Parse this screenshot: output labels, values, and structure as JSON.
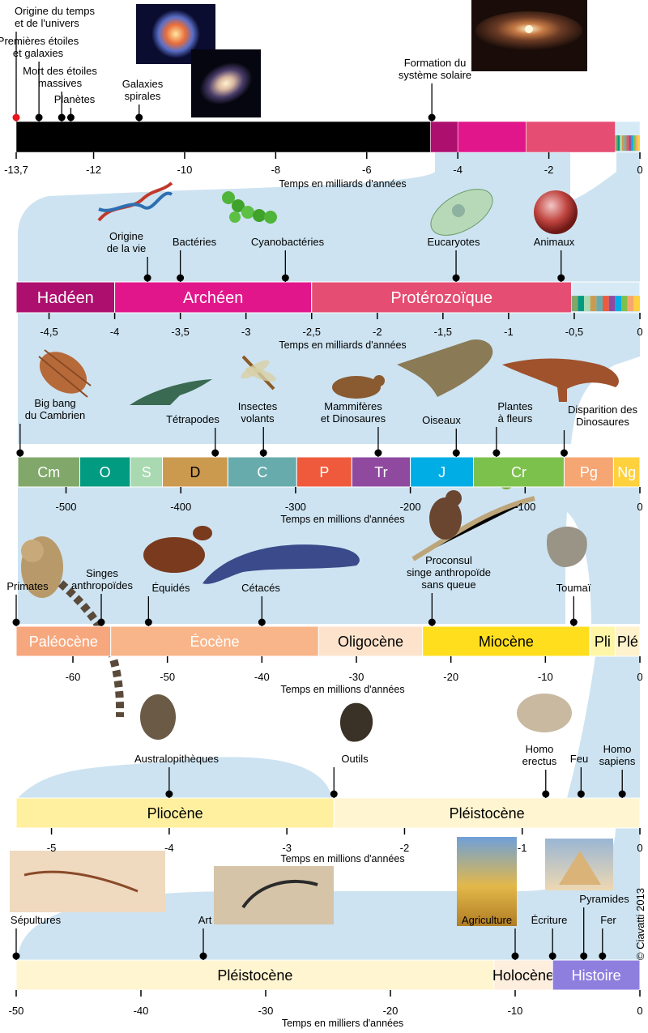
{
  "title_lines": [
    "Origine du temps",
    "et de l'univers"
  ],
  "copyright": "© Ciavatti 2013",
  "palette": {
    "title_red": "#e8141e",
    "backdrop": "#cde3f1",
    "black_bar": "#000000",
    "hadeen": "#ad0f6e",
    "archeen": "#e2168b",
    "proterozoique": "#e54d72",
    "phanero": "#d6eaf6",
    "cambrien": "#81a86a",
    "ordovicien": "#009b80",
    "silurien": "#a8d9b0",
    "devonien": "#cc9a4f",
    "carbonifere": "#67abad",
    "permien": "#ef5a3c",
    "trias": "#8f4aa0",
    "jurassique": "#00ade5",
    "cretace": "#7dc14d",
    "paleogene": "#f6a672",
    "neogene": "#fed13d",
    "paleocene": "#f7a77d",
    "eocene": "#f8b58a",
    "oligocene": "#fde3cc",
    "miocene": "#ffdf1d",
    "pliocene_small": "#fff5a7",
    "pleistocene_small": "#fff2cd",
    "pliocene": "#fff0a0",
    "pleistocene": "#fff5d0",
    "holocene": "#fdeedd",
    "histoire": "#8e7fdf"
  },
  "timelines": [
    {
      "id": "univers",
      "axis_title": "Temps en milliards d'années",
      "ticks": [
        "-13,7",
        "-12",
        "-10",
        "-8",
        "-6",
        "-4",
        "-2",
        "0"
      ],
      "tick_values": [
        -13.7,
        -12,
        -10,
        -8,
        -6,
        -4,
        -2,
        0
      ],
      "range": [
        -13.7,
        0
      ],
      "segments": [
        {
          "label": "",
          "from": -13.7,
          "to": -4.6,
          "color_key": "black_bar"
        },
        {
          "label": "",
          "from": -4.6,
          "to": -4.0,
          "color_key": "hadeen"
        },
        {
          "label": "",
          "from": -4.0,
          "to": -2.5,
          "color_key": "archeen"
        },
        {
          "label": "",
          "from": -2.5,
          "to": -0.54,
          "color_key": "proterozoique"
        },
        {
          "label": "",
          "from": -0.54,
          "to": 0,
          "color_key": "phanero"
        }
      ],
      "events": [
        {
          "label": [
            "Origine du temps",
            "et de l'univers"
          ],
          "t": -13.7,
          "red": true
        },
        {
          "label": [
            "Premières étoiles",
            "et galaxies"
          ],
          "t": -13.2
        },
        {
          "label": [
            "Mort des étoiles",
            "massives"
          ],
          "t": -12.7
        },
        {
          "label": [
            "Planètes"
          ],
          "t": -12.5
        },
        {
          "label": [
            "Galaxies",
            "spirales"
          ],
          "t": -11.0
        },
        {
          "label": [
            "Formation du",
            "système solaire"
          ],
          "t": -4.57
        }
      ]
    },
    {
      "id": "precambrien",
      "axis_title": "Temps en milliards d'années",
      "ticks": [
        "-4,5",
        "-4",
        "-3,5",
        "-3",
        "-2,5",
        "-2",
        "-1,5",
        "-1",
        "-0,5",
        "0"
      ],
      "tick_values": [
        -4.5,
        -4,
        -3.5,
        -3,
        -2.5,
        -2,
        -1.5,
        -1,
        -0.5,
        0
      ],
      "range": [
        -4.75,
        0
      ],
      "segments": [
        {
          "label": "Hadéen",
          "from": -4.75,
          "to": -4.0,
          "color_key": "hadeen"
        },
        {
          "label": "Archéen",
          "from": -4.0,
          "to": -2.5,
          "color_key": "archeen"
        },
        {
          "label": "Protérozoïque",
          "from": -2.5,
          "to": -0.52,
          "color_key": "proterozoique"
        },
        {
          "label": "",
          "from": -0.52,
          "to": 0,
          "color_key": "phanero"
        }
      ],
      "events": [
        {
          "label": [
            "Origine",
            "de la vie"
          ],
          "t": -3.75
        },
        {
          "label": [
            "Bactéries"
          ],
          "t": -3.5
        },
        {
          "label": [
            "Cyanobactéries"
          ],
          "t": -2.7
        },
        {
          "label": [
            "Eucaryotes"
          ],
          "t": -1.4
        },
        {
          "label": [
            "Animaux"
          ],
          "t": -0.6
        }
      ]
    },
    {
      "id": "phanerozoique",
      "axis_title": "Temps en millions d'années",
      "ticks": [
        "-500",
        "-400",
        "-300",
        "-200",
        "-100",
        "0"
      ],
      "tick_values": [
        -500,
        -400,
        -300,
        -200,
        -100,
        0
      ],
      "range": [
        -542,
        0
      ],
      "segments": [
        {
          "label": "Cm",
          "from": -542,
          "to": -488,
          "color_key": "cambrien"
        },
        {
          "label": "O",
          "from": -488,
          "to": -444,
          "color_key": "ordovicien"
        },
        {
          "label": "S",
          "from": -444,
          "to": -416,
          "color_key": "silurien"
        },
        {
          "label": "D",
          "from": -416,
          "to": -359,
          "color_key": "devonien"
        },
        {
          "label": "C",
          "from": -359,
          "to": -299,
          "color_key": "carbonifere"
        },
        {
          "label": "P",
          "from": -299,
          "to": -251,
          "color_key": "permien"
        },
        {
          "label": "Tr",
          "from": -251,
          "to": -200,
          "color_key": "trias"
        },
        {
          "label": "J",
          "from": -200,
          "to": -145,
          "color_key": "jurassique"
        },
        {
          "label": "Cr",
          "from": -145,
          "to": -66,
          "color_key": "cretace"
        },
        {
          "label": "Pg",
          "from": -66,
          "to": -23,
          "color_key": "paleogene"
        },
        {
          "label": "Ng",
          "from": -23,
          "to": 0,
          "color_key": "neogene"
        }
      ],
      "events": [
        {
          "label": [
            "Big bang",
            "du Cambrien"
          ],
          "t": -540
        },
        {
          "label": [
            "Tétrapodes"
          ],
          "t": -370
        },
        {
          "label": [
            "Insectes",
            "volants"
          ],
          "t": -328
        },
        {
          "label": [
            "Mammifères",
            "et Dinosaures"
          ],
          "t": -228
        },
        {
          "label": [
            "Oiseaux"
          ],
          "t": -160
        },
        {
          "label": [
            "Plantes",
            "à fleurs"
          ],
          "t": -125
        },
        {
          "label": [
            "Disparition des",
            "Dinosaures"
          ],
          "t": -66
        }
      ]
    },
    {
      "id": "cenozoique",
      "axis_title": "Temps en millions d'années",
      "ticks": [
        "-60",
        "-50",
        "-40",
        "-30",
        "-20",
        "-10",
        "0"
      ],
      "tick_values": [
        -60,
        -50,
        -40,
        -30,
        -20,
        -10,
        0
      ],
      "range": [
        -66,
        0
      ],
      "segments": [
        {
          "label": "Paléocène",
          "from": -66,
          "to": -56,
          "color_key": "paleocene"
        },
        {
          "label": "Éocène",
          "from": -56,
          "to": -34,
          "color_key": "eocene"
        },
        {
          "label": "Oligocène",
          "from": -34,
          "to": -23,
          "color_key": "oligocene"
        },
        {
          "label": "Miocène",
          "from": -23,
          "to": -5.3,
          "color_key": "miocene"
        },
        {
          "label": "Pli",
          "from": -5.3,
          "to": -2.6,
          "color_key": "pliocene_small"
        },
        {
          "label": "Plé",
          "from": -2.6,
          "to": 0,
          "color_key": "pleistocene_small"
        }
      ],
      "events": [
        {
          "label": [
            "Primates"
          ],
          "t": -66
        },
        {
          "label": [
            "Singes",
            "anthropoïdes"
          ],
          "t": -57
        },
        {
          "label": [
            "Équidés"
          ],
          "t": -52
        },
        {
          "label": [
            "Cétacés"
          ],
          "t": -40
        },
        {
          "label": [
            "Proconsul",
            "singe anthropoïde",
            "sans queue"
          ],
          "t": -22
        },
        {
          "label": [
            "Toumaï"
          ],
          "t": -7
        }
      ]
    },
    {
      "id": "plio-pleisto",
      "axis_title": "Temps en millions d'années",
      "ticks": [
        "-5",
        "-4",
        "-3",
        "-2",
        "-1",
        "0"
      ],
      "tick_values": [
        -5,
        -4,
        -3,
        -2,
        -1,
        0
      ],
      "range": [
        -5.3,
        0
      ],
      "segments": [
        {
          "label": "Pliocène",
          "from": -5.3,
          "to": -2.6,
          "color_key": "pliocene"
        },
        {
          "label": "Pléistocène",
          "from": -2.6,
          "to": 0,
          "color_key": "pleistocene"
        }
      ],
      "events": [
        {
          "label": [
            "Australopithèques"
          ],
          "t": -4.0
        },
        {
          "label": [
            "Outils"
          ],
          "t": -2.6
        },
        {
          "label": [
            "Homo",
            "erectus"
          ],
          "t": -0.8
        },
        {
          "label": [
            "Feu"
          ],
          "t": -0.5
        },
        {
          "label": [
            "Homo",
            "sapiens"
          ],
          "t": -0.15
        }
      ]
    },
    {
      "id": "recent",
      "axis_title": "Temps en milliers d'années",
      "ticks": [
        "-50",
        "-40",
        "-30",
        "-20",
        "-10",
        "0"
      ],
      "tick_values": [
        -50,
        -40,
        -30,
        -20,
        -10,
        0
      ],
      "range": [
        -50,
        0
      ],
      "segments": [
        {
          "label": "Pléistocène",
          "from": -50,
          "to": -11.7,
          "color_key": "pleistocene"
        },
        {
          "label": "Holocène",
          "from": -11.7,
          "to": -7,
          "color_key": "holocene"
        },
        {
          "label": "Histoire",
          "from": -7,
          "to": 0,
          "color_key": "histoire"
        }
      ],
      "events": [
        {
          "label": [
            "Sépultures"
          ],
          "t": -50
        },
        {
          "label": [
            "Art"
          ],
          "t": -35
        },
        {
          "label": [
            "Agriculture"
          ],
          "t": -10
        },
        {
          "label": [
            "Écriture"
          ],
          "t": -7
        },
        {
          "label": [
            "Pyramides"
          ],
          "t": -4.5
        },
        {
          "label": [
            "Fer"
          ],
          "t": -3
        }
      ]
    }
  ],
  "illustrations": [
    "supernova-image",
    "spiral-galaxy-image",
    "protoplanetary-disk-image",
    "dna-strand-image",
    "cyanobacteria-image",
    "eukaryote-cell-image",
    "animal-cell-image",
    "trilobite-image",
    "tetrapod-image",
    "dragonfly-image",
    "early-mammal-image",
    "archaeopteryx-image",
    "dinosaur-image",
    "flowering-plant-image",
    "lemur-primate-image",
    "horse-ancestor-image",
    "whale-image",
    "proconsul-ape-image",
    "toumai-skull-image",
    "australopithecus-skull-image",
    "stone-tool-image",
    "homo-erectus-skull-image",
    "burial-skeleton-image",
    "cave-art-image",
    "wheat-image",
    "pyramid-image"
  ]
}
